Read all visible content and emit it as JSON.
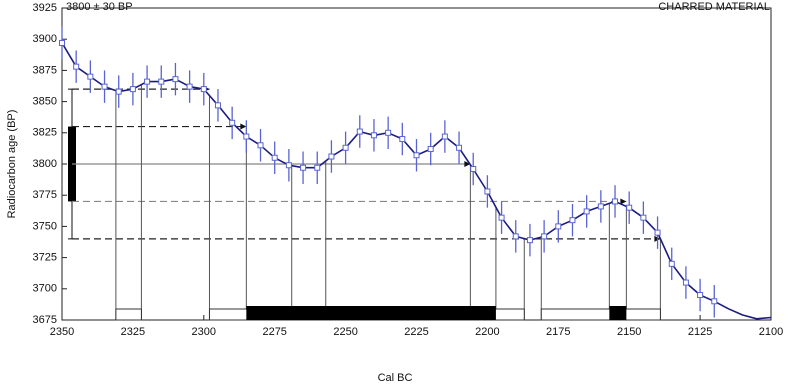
{
  "chart_data": {
    "type": "calibration",
    "title": "3800 ± 30 BP",
    "subtitle": "CHARRED MATERIAL",
    "x_label": "Cal BC",
    "y_label": "Radiocarbon age (BP)",
    "xlim": [
      2350,
      2100
    ],
    "ylim": [
      3675,
      3925
    ],
    "xticks": [
      2350,
      2325,
      2300,
      2275,
      2250,
      2225,
      2200,
      2175,
      2150,
      2125,
      2100
    ],
    "yticks": [
      3675,
      3700,
      3725,
      3750,
      3775,
      3800,
      3825,
      3850,
      3875,
      3900,
      3925
    ],
    "measurement": {
      "mean": 3800,
      "sigma": 30
    },
    "curve": {
      "color": "#1c1c80",
      "point_color": "#5a64d0",
      "x": [
        2350,
        2345,
        2340,
        2335,
        2330,
        2325,
        2320,
        2315,
        2310,
        2305,
        2300,
        2295,
        2290,
        2285,
        2280,
        2275,
        2270,
        2265,
        2260,
        2255,
        2250,
        2245,
        2240,
        2235,
        2230,
        2225,
        2220,
        2215,
        2210,
        2205,
        2200,
        2195,
        2190,
        2185,
        2180,
        2175,
        2170,
        2165,
        2160,
        2155,
        2150,
        2145,
        2140,
        2135,
        2130,
        2125,
        2120,
        2115,
        2110,
        2105,
        2100
      ],
      "values": [
        3897,
        3878,
        3870,
        3862,
        3858,
        3860,
        3866,
        3866,
        3868,
        3862,
        3860,
        3847,
        3833,
        3822,
        3815,
        3805,
        3799,
        3797,
        3797,
        3806,
        3813,
        3826,
        3823,
        3825,
        3820,
        3807,
        3812,
        3822,
        3813,
        3796,
        3778,
        3757,
        3742,
        3739,
        3742,
        3750,
        3755,
        3762,
        3766,
        3770,
        3765,
        3757,
        3745,
        3720,
        3705,
        3695,
        3690,
        3684,
        3679,
        3676,
        3677
      ],
      "errors": [
        13,
        13,
        13,
        13,
        13,
        13,
        13,
        13,
        13,
        13,
        13,
        13,
        13,
        13,
        13,
        13,
        13,
        13,
        13,
        13,
        13,
        13,
        13,
        13,
        13,
        13,
        13,
        13,
        13,
        13,
        13,
        13,
        13,
        13,
        13,
        13,
        13,
        13,
        13,
        13,
        13,
        13,
        13,
        13,
        13,
        13,
        13,
        null,
        null,
        null,
        null
      ]
    },
    "sigma2_ranges": [
      [
        2331,
        2322
      ],
      [
        2298,
        2187
      ],
      [
        2181,
        2139
      ]
    ],
    "sigma1_ranges": [
      [
        2285,
        2197
      ],
      [
        2157,
        2151
      ]
    ],
    "intercepts": [
      2269,
      2257,
      2206
    ],
    "levels": [
      {
        "y": 3860,
        "to": 2298,
        "style": "dashed-black"
      },
      {
        "y": 3830,
        "to": 2285,
        "style": "dashed-black"
      },
      {
        "y": 3800,
        "to": 2206,
        "style": "solid-gray"
      },
      {
        "y": 3770,
        "to": 2151,
        "style": "dashed-gray"
      },
      {
        "y": 3740,
        "to": 2139,
        "style": "dashed-black"
      }
    ]
  }
}
